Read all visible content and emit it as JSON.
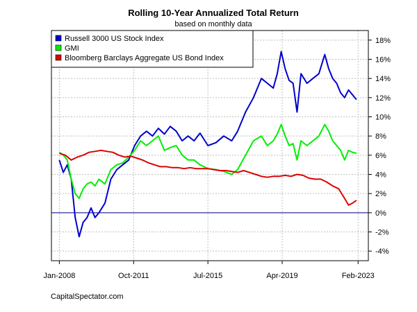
{
  "chart_data": {
    "type": "line",
    "title": "Rolling 10-Year Annualized Total Return",
    "subtitle": "based on monthly data",
    "source": "CapitalSpectator.com",
    "x_tick_labels": [
      "Jan-2008",
      "Oct-2011",
      "Jul-2015",
      "Apr-2019",
      "Feb-2023"
    ],
    "x_tick_values": [
      2008.0,
      2011.75,
      2015.5,
      2019.25,
      2023.083
    ],
    "xlim": [
      2007.6,
      2023.6
    ],
    "ylim": [
      -5,
      19
    ],
    "y_ticks": [
      -4,
      -2,
      0,
      2,
      4,
      6,
      8,
      10,
      12,
      14,
      16,
      18
    ],
    "y_tick_labels": [
      "-4%",
      "-2%",
      "0%",
      "2%",
      "4%",
      "6%",
      "8%",
      "10%",
      "12%",
      "14%",
      "16%",
      "18%"
    ],
    "y_axis_side": "right",
    "grid": true,
    "zero_line": true,
    "legend": "top-left",
    "series": [
      {
        "name": "Russell 3000 US Stock Index",
        "color": "#0000CC",
        "x": [
          2008.0,
          2008.2,
          2008.4,
          2008.6,
          2008.8,
          2009.0,
          2009.2,
          2009.4,
          2009.6,
          2009.8,
          2010.0,
          2010.3,
          2010.6,
          2010.9,
          2011.2,
          2011.5,
          2011.8,
          2012.1,
          2012.4,
          2012.7,
          2013.0,
          2013.3,
          2013.6,
          2013.9,
          2014.2,
          2014.5,
          2014.8,
          2015.1,
          2015.5,
          2015.9,
          2016.3,
          2016.7,
          2017.0,
          2017.4,
          2017.8,
          2018.2,
          2018.5,
          2018.8,
          2019.0,
          2019.2,
          2019.4,
          2019.6,
          2019.8,
          2020.0,
          2020.2,
          2020.5,
          2020.8,
          2021.1,
          2021.4,
          2021.6,
          2021.8,
          2022.0,
          2022.2,
          2022.4,
          2022.6,
          2022.8,
          2023.0
        ],
        "y": [
          5.5,
          4.2,
          5.0,
          3.5,
          -0.5,
          -2.5,
          -1.0,
          -0.5,
          0.5,
          -0.5,
          0.0,
          1.0,
          3.5,
          4.5,
          5.0,
          5.5,
          7.0,
          8.0,
          8.5,
          8.0,
          8.8,
          8.2,
          9.0,
          8.5,
          7.5,
          8.0,
          7.5,
          8.3,
          7.0,
          7.3,
          8.0,
          7.5,
          8.5,
          10.5,
          12.0,
          14.0,
          13.5,
          13.0,
          14.5,
          16.8,
          15.0,
          13.8,
          13.5,
          10.5,
          14.5,
          13.5,
          14.0,
          14.5,
          16.5,
          15.0,
          14.0,
          13.5,
          12.5,
          12.0,
          12.8,
          12.3,
          11.8
        ]
      },
      {
        "name": "GMI",
        "color": "#00EE00",
        "x": [
          2008.0,
          2008.2,
          2008.4,
          2008.6,
          2008.8,
          2009.0,
          2009.2,
          2009.4,
          2009.6,
          2009.8,
          2010.0,
          2010.3,
          2010.6,
          2010.9,
          2011.2,
          2011.5,
          2011.8,
          2012.1,
          2012.4,
          2012.7,
          2013.0,
          2013.3,
          2013.6,
          2013.9,
          2014.2,
          2014.5,
          2014.8,
          2015.1,
          2015.5,
          2015.9,
          2016.3,
          2016.7,
          2017.0,
          2017.4,
          2017.8,
          2018.2,
          2018.5,
          2018.8,
          2019.0,
          2019.2,
          2019.4,
          2019.6,
          2019.8,
          2020.0,
          2020.2,
          2020.5,
          2020.8,
          2021.1,
          2021.4,
          2021.6,
          2021.8,
          2022.0,
          2022.2,
          2022.4,
          2022.6,
          2022.8,
          2023.0
        ],
        "y": [
          6.3,
          6.0,
          5.5,
          3.5,
          2.0,
          1.5,
          2.5,
          3.0,
          3.2,
          2.8,
          3.5,
          3.0,
          4.5,
          5.0,
          5.2,
          5.8,
          6.5,
          7.5,
          7.0,
          7.5,
          8.0,
          6.5,
          6.8,
          7.0,
          6.0,
          5.5,
          5.5,
          5.0,
          4.6,
          4.5,
          4.3,
          4.0,
          4.5,
          6.0,
          7.5,
          8.0,
          7.0,
          7.5,
          8.2,
          9.2,
          8.0,
          7.0,
          7.2,
          5.5,
          7.5,
          7.0,
          7.5,
          8.0,
          9.2,
          8.5,
          7.5,
          7.0,
          6.5,
          5.5,
          6.5,
          6.3,
          6.2
        ]
      },
      {
        "name": "Bloomberg Barclays Aggregate US Bond Index",
        "color": "#DD0000",
        "x": [
          2008.0,
          2008.3,
          2008.6,
          2008.9,
          2009.2,
          2009.5,
          2009.8,
          2010.1,
          2010.4,
          2010.7,
          2011.0,
          2011.3,
          2011.6,
          2011.9,
          2012.2,
          2012.5,
          2012.8,
          2013.1,
          2013.4,
          2013.7,
          2014.0,
          2014.3,
          2014.6,
          2014.9,
          2015.2,
          2015.5,
          2015.8,
          2016.1,
          2016.4,
          2016.7,
          2017.0,
          2017.3,
          2017.6,
          2017.9,
          2018.2,
          2018.5,
          2018.8,
          2019.1,
          2019.4,
          2019.7,
          2020.0,
          2020.3,
          2020.6,
          2020.9,
          2021.2,
          2021.5,
          2021.8,
          2022.1,
          2022.4,
          2022.6,
          2022.8,
          2023.0
        ],
        "y": [
          6.2,
          6.0,
          5.5,
          5.8,
          6.0,
          6.3,
          6.4,
          6.5,
          6.4,
          6.3,
          6.0,
          5.8,
          5.9,
          5.7,
          5.5,
          5.2,
          5.0,
          4.8,
          4.8,
          4.7,
          4.7,
          4.6,
          4.7,
          4.6,
          4.6,
          4.6,
          4.5,
          4.4,
          4.4,
          4.3,
          4.2,
          4.4,
          4.2,
          4.0,
          3.8,
          3.7,
          3.8,
          3.8,
          3.9,
          3.8,
          4.0,
          3.9,
          3.6,
          3.5,
          3.5,
          3.2,
          2.8,
          2.5,
          1.5,
          0.8,
          1.0,
          1.3
        ]
      }
    ]
  }
}
